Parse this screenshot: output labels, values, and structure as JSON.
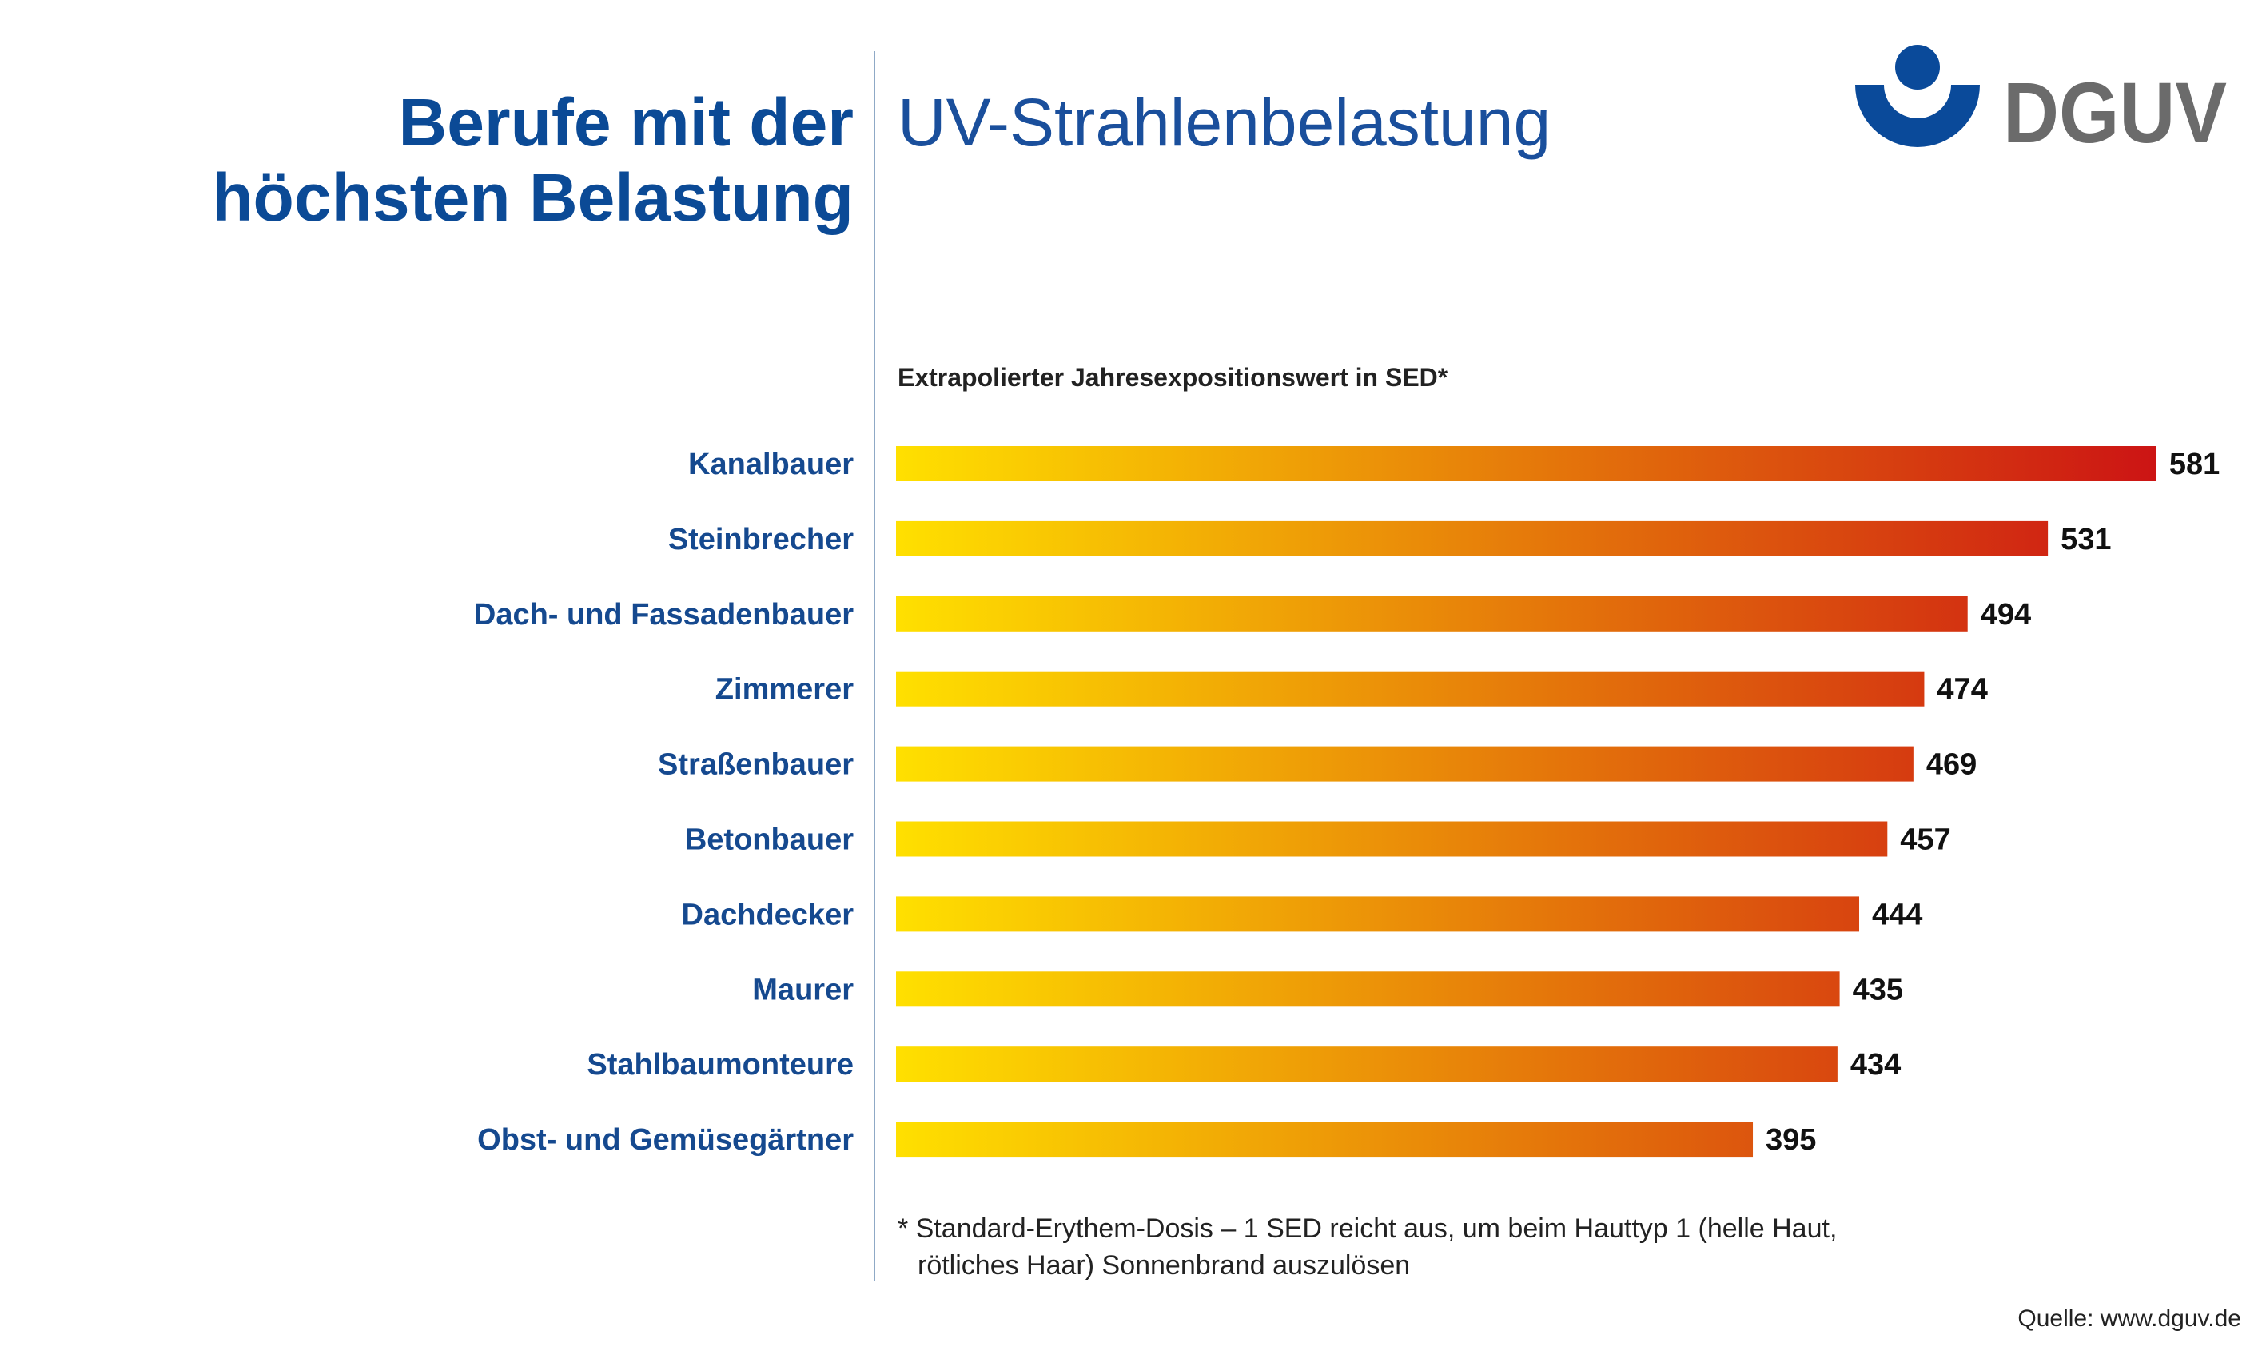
{
  "chart_data": {
    "type": "bar",
    "orientation": "horizontal",
    "title": [
      "Berufe mit der",
      "höchsten Belastung"
    ],
    "subtitle": "UV-Strahlenbelastung",
    "logo": "DGUV",
    "x_label": "Extrapolierter Jahresexpositionswert in SED*",
    "categories": [
      "Kanalbauer",
      "Steinbrecher",
      "Dach- und Fassadenbauer",
      "Zimmerer",
      "Straßenbauer",
      "Betonbauer",
      "Dachdecker",
      "Maurer",
      "Stahlbaumonteure",
      "Obst- und Gemüsegärtner"
    ],
    "values": [
      581,
      531,
      494,
      474,
      469,
      457,
      444,
      435,
      434,
      395
    ],
    "gradient": [
      "#ffe000",
      "#cc1414"
    ],
    "footnote": [
      "* Standard-Erythem-Dosis – 1 SED reicht aus, um beim Hauttyp 1 (helle Haut,",
      "rötliches Haar) Sonnenbrand auszulösen"
    ],
    "source": "Quelle: www.dguv.de"
  }
}
